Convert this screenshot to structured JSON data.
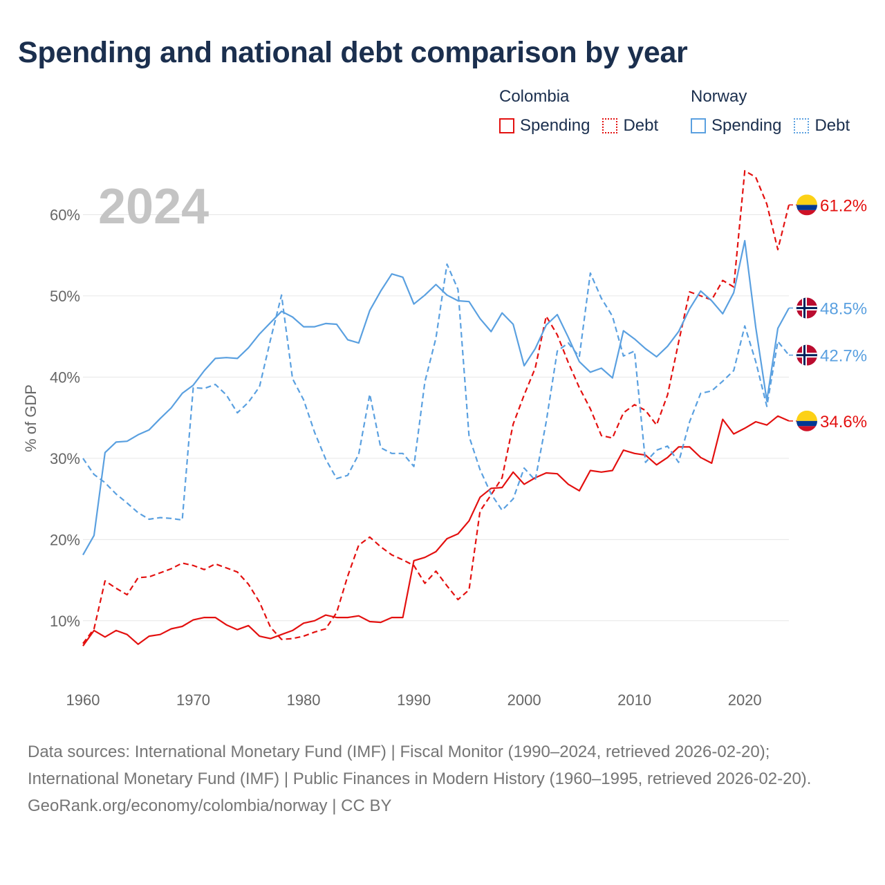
{
  "title": "Spending and national debt comparison by year",
  "year_label": "2024",
  "legend": [
    {
      "country": "Colombia",
      "items": [
        {
          "label": "Spending",
          "style": "solid",
          "color": "#e3100f"
        },
        {
          "label": "Debt",
          "style": "dashed",
          "color": "#e3100f"
        }
      ]
    },
    {
      "country": "Norway",
      "items": [
        {
          "label": "Spending",
          "style": "solid",
          "color": "#5aa0e0"
        },
        {
          "label": "Debt",
          "style": "dashed",
          "color": "#5aa0e0"
        }
      ]
    }
  ],
  "footer": {
    "sources": "Data sources: International Monetary Fund (IMF) | Fiscal Monitor (1990–2024, retrieved 2026-02-20); International Monetary Fund (IMF) | Public Finances in Modern History (1960–1995, retrieved 2026-02-20).",
    "credit": "GeoRank.org/economy/colombia/norway | CC BY"
  },
  "chart_data": {
    "type": "line",
    "title": "Spending and national debt comparison by year",
    "xlabel": "",
    "ylabel": "% of GDP",
    "xlim": [
      1960,
      2024
    ],
    "ylim": [
      3,
      66
    ],
    "x_ticks": [
      1960,
      1970,
      1980,
      1990,
      2000,
      2010,
      2020
    ],
    "y_ticks": [
      10,
      20,
      30,
      40,
      50,
      60
    ],
    "y_tick_labels": [
      "10%",
      "20%",
      "30%",
      "40%",
      "50%",
      "60%"
    ],
    "grid": true,
    "x_start": 1960,
    "series": [
      {
        "name": "Colombia Spending",
        "country": "Colombia",
        "style": "solid",
        "color": "#e3100f",
        "end_label": "34.6%",
        "values": [
          6.9,
          8.8,
          8.0,
          8.8,
          8.3,
          7.1,
          8.1,
          8.3,
          9.0,
          9.3,
          10.1,
          10.4,
          10.4,
          9.5,
          8.9,
          9.4,
          8.1,
          7.8,
          8.3,
          8.8,
          9.7,
          10.0,
          10.7,
          10.4,
          10.4,
          10.6,
          9.9,
          9.8,
          10.4,
          10.4,
          17.4,
          17.8,
          18.5,
          20.1,
          20.7,
          22.3,
          25.2,
          26.3,
          26.4,
          28.3,
          26.8,
          27.6,
          28.2,
          28.1,
          26.8,
          26.0,
          28.5,
          28.3,
          28.5,
          31.0,
          30.6,
          30.4,
          29.2,
          30.1,
          31.4,
          31.4,
          30.1,
          29.4,
          34.8,
          33.0,
          33.7,
          34.5,
          34.1,
          35.2,
          34.6
        ]
      },
      {
        "name": "Colombia Debt",
        "country": "Colombia",
        "style": "dashed",
        "color": "#e3100f",
        "end_label": "61.2%",
        "values": [
          7.2,
          9.0,
          14.9,
          14.0,
          13.2,
          15.3,
          15.4,
          15.9,
          16.4,
          17.1,
          16.8,
          16.3,
          17.0,
          16.5,
          16.0,
          14.5,
          12.3,
          9.2,
          7.7,
          7.8,
          8.1,
          8.6,
          9.0,
          11.0,
          15.5,
          19.3,
          20.3,
          19.1,
          18.1,
          17.5,
          16.8,
          14.6,
          16.1,
          14.3,
          12.6,
          13.8,
          23.5,
          25.5,
          27.6,
          34.2,
          37.8,
          41.1,
          47.5,
          45.2,
          41.8,
          38.7,
          36.1,
          32.8,
          32.5,
          35.6,
          36.6,
          35.9,
          34.1,
          37.8,
          44.3,
          50.5,
          50.0,
          49.5,
          51.9,
          51.1,
          65.4,
          64.6,
          61.3,
          55.7,
          61.2
        ]
      },
      {
        "name": "Norway Spending",
        "country": "Norway",
        "style": "solid",
        "color": "#5aa0e0",
        "end_label": "48.5%",
        "values": [
          18.1,
          20.5,
          30.7,
          32.0,
          32.1,
          32.9,
          33.5,
          34.9,
          36.2,
          38.0,
          39.0,
          40.8,
          42.3,
          42.4,
          42.3,
          43.6,
          45.3,
          46.7,
          48.1,
          47.4,
          46.2,
          46.2,
          46.6,
          46.5,
          44.6,
          44.2,
          48.2,
          50.6,
          52.7,
          52.3,
          49.0,
          50.1,
          51.4,
          50.1,
          49.4,
          49.3,
          47.2,
          45.6,
          47.9,
          46.5,
          41.4,
          43.5,
          46.4,
          47.7,
          44.9,
          41.9,
          40.6,
          41.1,
          39.9,
          45.7,
          44.7,
          43.5,
          42.5,
          43.8,
          45.6,
          48.4,
          50.6,
          49.4,
          47.8,
          50.4,
          56.8,
          46.1,
          37.1,
          46.0,
          48.5
        ]
      },
      {
        "name": "Norway Debt",
        "country": "Norway",
        "style": "dashed",
        "color": "#5aa0e0",
        "end_label": "42.7%",
        "values": [
          30.0,
          28.0,
          27.0,
          25.6,
          24.5,
          23.3,
          22.5,
          22.7,
          22.6,
          22.4,
          38.7,
          38.6,
          39.1,
          37.8,
          35.6,
          36.9,
          38.8,
          44.6,
          50.1,
          39.8,
          37.2,
          33.2,
          29.9,
          27.5,
          27.9,
          30.5,
          37.9,
          31.3,
          30.6,
          30.6,
          29.0,
          39.4,
          44.8,
          53.9,
          50.8,
          32.7,
          28.6,
          25.6,
          23.6,
          25.0,
          28.8,
          27.3,
          34.5,
          43.2,
          44.2,
          42.5,
          52.8,
          49.7,
          47.5,
          42.6,
          43.2,
          29.5,
          31.0,
          31.5,
          29.5,
          34.5,
          38.0,
          38.3,
          39.5,
          40.8,
          46.3,
          41.9,
          36.4,
          44.4,
          42.7
        ]
      }
    ]
  }
}
